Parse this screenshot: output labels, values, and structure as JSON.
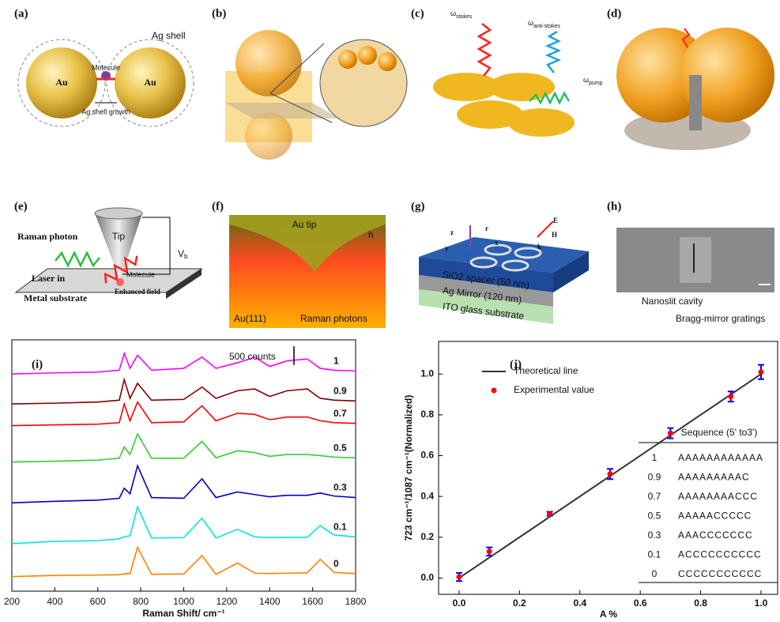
{
  "panels": [
    "(a)",
    "(b)",
    "(c)",
    "(d)",
    "(e)",
    "(f)",
    "(g)",
    "(h)"
  ],
  "illustrations": {
    "a": {
      "shell": "Ag shell",
      "left": "Au",
      "right": "Au",
      "molecule": "Molecule",
      "growth": "Ag shell growth"
    },
    "c": {
      "stokes": {
        "symbol": "ω",
        "subscript": "stokes"
      },
      "anti": {
        "symbol": "ω",
        "subscript": "anti-stokes"
      },
      "pump": {
        "symbol": "ω",
        "subscript": "pump"
      }
    },
    "e": {
      "photon": "Raman photon",
      "tip": "Tip",
      "bias": {
        "symbol": "V",
        "subscript": "b"
      },
      "molecule": "Molecule",
      "laser": "Laser in",
      "substrate": "Metal substrate",
      "field": "Enhanced field"
    },
    "f": {
      "tip": "Au tip",
      "surface": "Au(111)",
      "photons": "Raman photons",
      "gap": "h"
    },
    "g": {
      "z": "z",
      "r": "r",
      "E": "E",
      "H": "H",
      "y": "y",
      "k": "k",
      "x": "x",
      "spacer": "SiO2 spacer (50 nm)",
      "mirror": "Ag Mirror (120 nm)",
      "glass": "ITO glass substrate"
    },
    "h": {
      "cavity": "Nanoslit cavity",
      "gratings": "Bragg-mirror gratings"
    }
  },
  "chart_data": [
    {
      "type": "line",
      "panel": "(i)",
      "x_label": "Raman Shift/ cm⁻¹",
      "scale_bar": {
        "label": "500 counts",
        "value": 500
      },
      "x": [
        200,
        400,
        600,
        700,
        723,
        750,
        785,
        850,
        1000,
        1085,
        1150,
        1250,
        1330,
        1400,
        1480,
        1575,
        1635,
        1700,
        1800
      ],
      "xlim": [
        200,
        1800
      ],
      "xticks": [
        200,
        400,
        600,
        800,
        1000,
        1200,
        1400,
        1600,
        1800
      ],
      "ylim": [
        0,
        6500
      ],
      "series": [
        {
          "name": "1",
          "color": "#ff00ff",
          "values": [
            5800,
            5830,
            5850,
            5900,
            6350,
            5950,
            6300,
            5900,
            5950,
            6250,
            5950,
            6100,
            6250,
            6000,
            6150,
            6200,
            5950,
            5900,
            5880
          ]
        },
        {
          "name": "0.9",
          "color": "#800000",
          "values": [
            5000,
            5020,
            5050,
            5100,
            5650,
            5150,
            5550,
            5100,
            5120,
            5450,
            5150,
            5350,
            5400,
            5200,
            5350,
            5400,
            5150,
            5100,
            5080
          ]
        },
        {
          "name": "0.7",
          "color": "#ff0000",
          "values": [
            4420,
            4440,
            4460,
            4500,
            5000,
            4550,
            5050,
            4500,
            4520,
            4950,
            4550,
            4750,
            4720,
            4580,
            4650,
            4650,
            4550,
            4500,
            4480
          ]
        },
        {
          "name": "0.5",
          "color": "#33cc33",
          "values": [
            3450,
            3470,
            3500,
            3550,
            3850,
            3650,
            4200,
            3550,
            3550,
            4000,
            3560,
            3750,
            3700,
            3600,
            3650,
            3650,
            3620,
            3580,
            3560
          ]
        },
        {
          "name": "0.3",
          "color": "#0000cc",
          "values": [
            2360,
            2400,
            2430,
            2480,
            2750,
            2600,
            3350,
            2500,
            2480,
            3000,
            2500,
            2650,
            2580,
            2520,
            2560,
            2560,
            2620,
            2540,
            2500
          ]
        },
        {
          "name": "0.1",
          "color": "#00e5e5",
          "values": [
            1270,
            1330,
            1350,
            1400,
            1450,
            1480,
            2250,
            1420,
            1430,
            1950,
            1420,
            1650,
            1450,
            1430,
            1440,
            1440,
            1750,
            1500,
            1450
          ]
        },
        {
          "name": "0",
          "color": "#ff8000",
          "values": [
            390,
            420,
            430,
            440,
            460,
            470,
            1170,
            450,
            460,
            950,
            450,
            750,
            480,
            470,
            480,
            490,
            850,
            500,
            470
          ]
        }
      ]
    },
    {
      "type": "line",
      "panel": "(j)",
      "x_label": "A %",
      "y_label": "723 cm⁻¹/1087 cm⁻¹(Normalized)",
      "xlim": [
        -0.068,
        1.055
      ],
      "ylim": [
        -0.08,
        1.16
      ],
      "xticks": [
        {
          "value": 0,
          "label": "0.0"
        },
        {
          "value": 0.2,
          "label": "0.2"
        },
        {
          "value": 0.4,
          "label": "0.4"
        },
        {
          "value": 0.6,
          "label": "0.6"
        },
        {
          "value": 0.8,
          "label": "0.8"
        },
        {
          "value": 1,
          "label": "1.0"
        }
      ],
      "yticks": [
        {
          "value": 0,
          "label": "0.0"
        },
        {
          "value": 0.2,
          "label": "0.2"
        },
        {
          "value": 0.4,
          "label": "0.4"
        },
        {
          "value": 0.6,
          "label": "0.6"
        },
        {
          "value": 0.8,
          "label": "0.8"
        },
        {
          "value": 1,
          "label": "1.0"
        }
      ],
      "series": [
        {
          "name": "Theoretical line",
          "color": "#333333",
          "x": [
            0,
            1
          ],
          "values": [
            0,
            1
          ]
        },
        {
          "name": "Experimental value",
          "color": "#ff0000",
          "error_color": "#0000ff",
          "x": [
            0,
            0.1,
            0.3,
            0.5,
            0.7,
            0.9,
            1
          ],
          "values": [
            0.005,
            0.13,
            0.315,
            0.51,
            0.71,
            0.89,
            1.01
          ],
          "errors": [
            0.02,
            0.02,
            0.01,
            0.025,
            0.025,
            0.025,
            0.035
          ]
        }
      ],
      "inset_table": {
        "header": "Sequence (5' to3')",
        "rows": [
          [
            "1",
            "AAAAAAAAAAAA"
          ],
          [
            "0.9",
            "AAAAAAAAAC"
          ],
          [
            "0.7",
            "AAAAAAAACCC"
          ],
          [
            "0.5",
            "AAAAACCCCC"
          ],
          [
            "0.3",
            "AAACCCCCCC"
          ],
          [
            "0.1",
            "ACCCCCCCCCC"
          ],
          [
            "0",
            "CCCCCCCCCCC"
          ]
        ]
      }
    }
  ]
}
